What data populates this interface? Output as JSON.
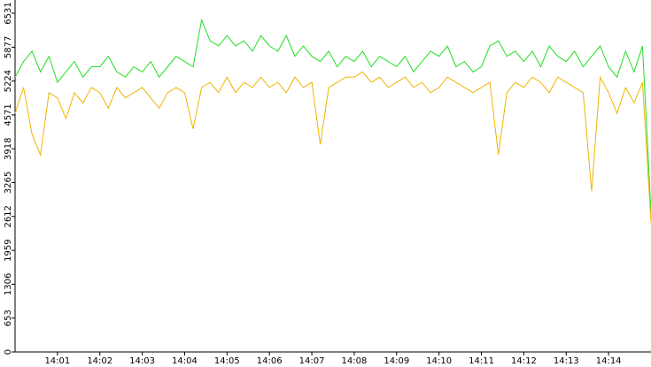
{
  "chart_data": {
    "type": "line",
    "x": [
      0,
      0.2,
      0.4,
      0.6,
      0.8,
      1,
      1.2,
      1.4,
      1.6,
      1.8,
      2,
      2.2,
      2.4,
      2.6,
      2.8,
      3,
      3.2,
      3.4,
      3.6,
      3.8,
      4,
      4.2,
      4.4,
      4.6,
      4.8,
      5,
      5.2,
      5.4,
      5.6,
      5.8,
      6,
      6.2,
      6.4,
      6.6,
      6.8,
      7,
      7.2,
      7.4,
      7.6,
      7.8,
      8,
      8.2,
      8.4,
      8.6,
      8.8,
      9,
      9.2,
      9.4,
      9.6,
      9.8,
      10,
      10.2,
      10.4,
      10.6,
      10.8,
      11,
      11.2,
      11.4,
      11.6,
      11.8,
      12,
      12.2,
      12.4,
      12.6,
      12.8,
      13,
      13.2,
      13.4,
      13.6,
      13.8,
      14,
      14.2,
      14.4,
      14.6,
      14.8,
      15
    ],
    "series": [
      {
        "color": "#22dd22",
        "values": [
          5300,
          5600,
          5800,
          5400,
          5700,
          5200,
          5400,
          5600,
          5300,
          5500,
          5500,
          5700,
          5400,
          5300,
          5500,
          5400,
          5600,
          5300,
          5500,
          5700,
          5600,
          5500,
          6400,
          6000,
          5900,
          6100,
          5900,
          6000,
          5800,
          6100,
          5900,
          5800,
          6100,
          5700,
          5900,
          5700,
          5600,
          5800,
          5500,
          5700,
          5600,
          5800,
          5500,
          5700,
          5600,
          5500,
          5700,
          5400,
          5600,
          5800,
          5700,
          5900,
          5500,
          5600,
          5400,
          5500,
          5900,
          6000,
          5700,
          5800,
          5600,
          5800,
          5500,
          5900,
          5700,
          5600,
          5800,
          5500,
          5700,
          5900,
          5500,
          5300,
          5800,
          5400,
          5900,
          2700
        ]
      },
      {
        "color": "#f0b400",
        "values": [
          4600,
          5100,
          4200,
          3800,
          5000,
          4900,
          4500,
          5000,
          4800,
          5100,
          5000,
          4700,
          5100,
          4900,
          5000,
          5100,
          4900,
          4700,
          5000,
          5100,
          5000,
          4300,
          5100,
          5200,
          5000,
          5300,
          5000,
          5200,
          5100,
          5300,
          5100,
          5200,
          5000,
          5300,
          5100,
          5200,
          4000,
          5100,
          5200,
          5300,
          5300,
          5400,
          5200,
          5300,
          5100,
          5200,
          5300,
          5100,
          5200,
          5000,
          5100,
          5300,
          5200,
          5100,
          5000,
          5100,
          5200,
          3800,
          5000,
          5200,
          5100,
          5300,
          5200,
          5000,
          5300,
          5200,
          5100,
          5000,
          3100,
          5300,
          5000,
          4600,
          5100,
          4800,
          5200,
          2500
        ]
      }
    ],
    "xlim": [
      0,
      15
    ],
    "xticks": [
      {
        "value": 1,
        "label": "14:01"
      },
      {
        "value": 2,
        "label": "14:02"
      },
      {
        "value": 3,
        "label": "14:03"
      },
      {
        "value": 4,
        "label": "14:04"
      },
      {
        "value": 5,
        "label": "14:05"
      },
      {
        "value": 6,
        "label": "14:06"
      },
      {
        "value": 7,
        "label": "14:07"
      },
      {
        "value": 8,
        "label": "14:08"
      },
      {
        "value": 9,
        "label": "14:09"
      },
      {
        "value": 10,
        "label": "14:10"
      },
      {
        "value": 11,
        "label": "14:11"
      },
      {
        "value": 12,
        "label": "14:12"
      },
      {
        "value": 13,
        "label": "14:13"
      },
      {
        "value": 14,
        "label": "14:14"
      }
    ],
    "ylim": [
      0,
      6787
    ],
    "yticks": [
      0,
      653,
      1306,
      1959,
      2612,
      3265,
      3918,
      4571,
      5224,
      5877,
      6531
    ]
  }
}
